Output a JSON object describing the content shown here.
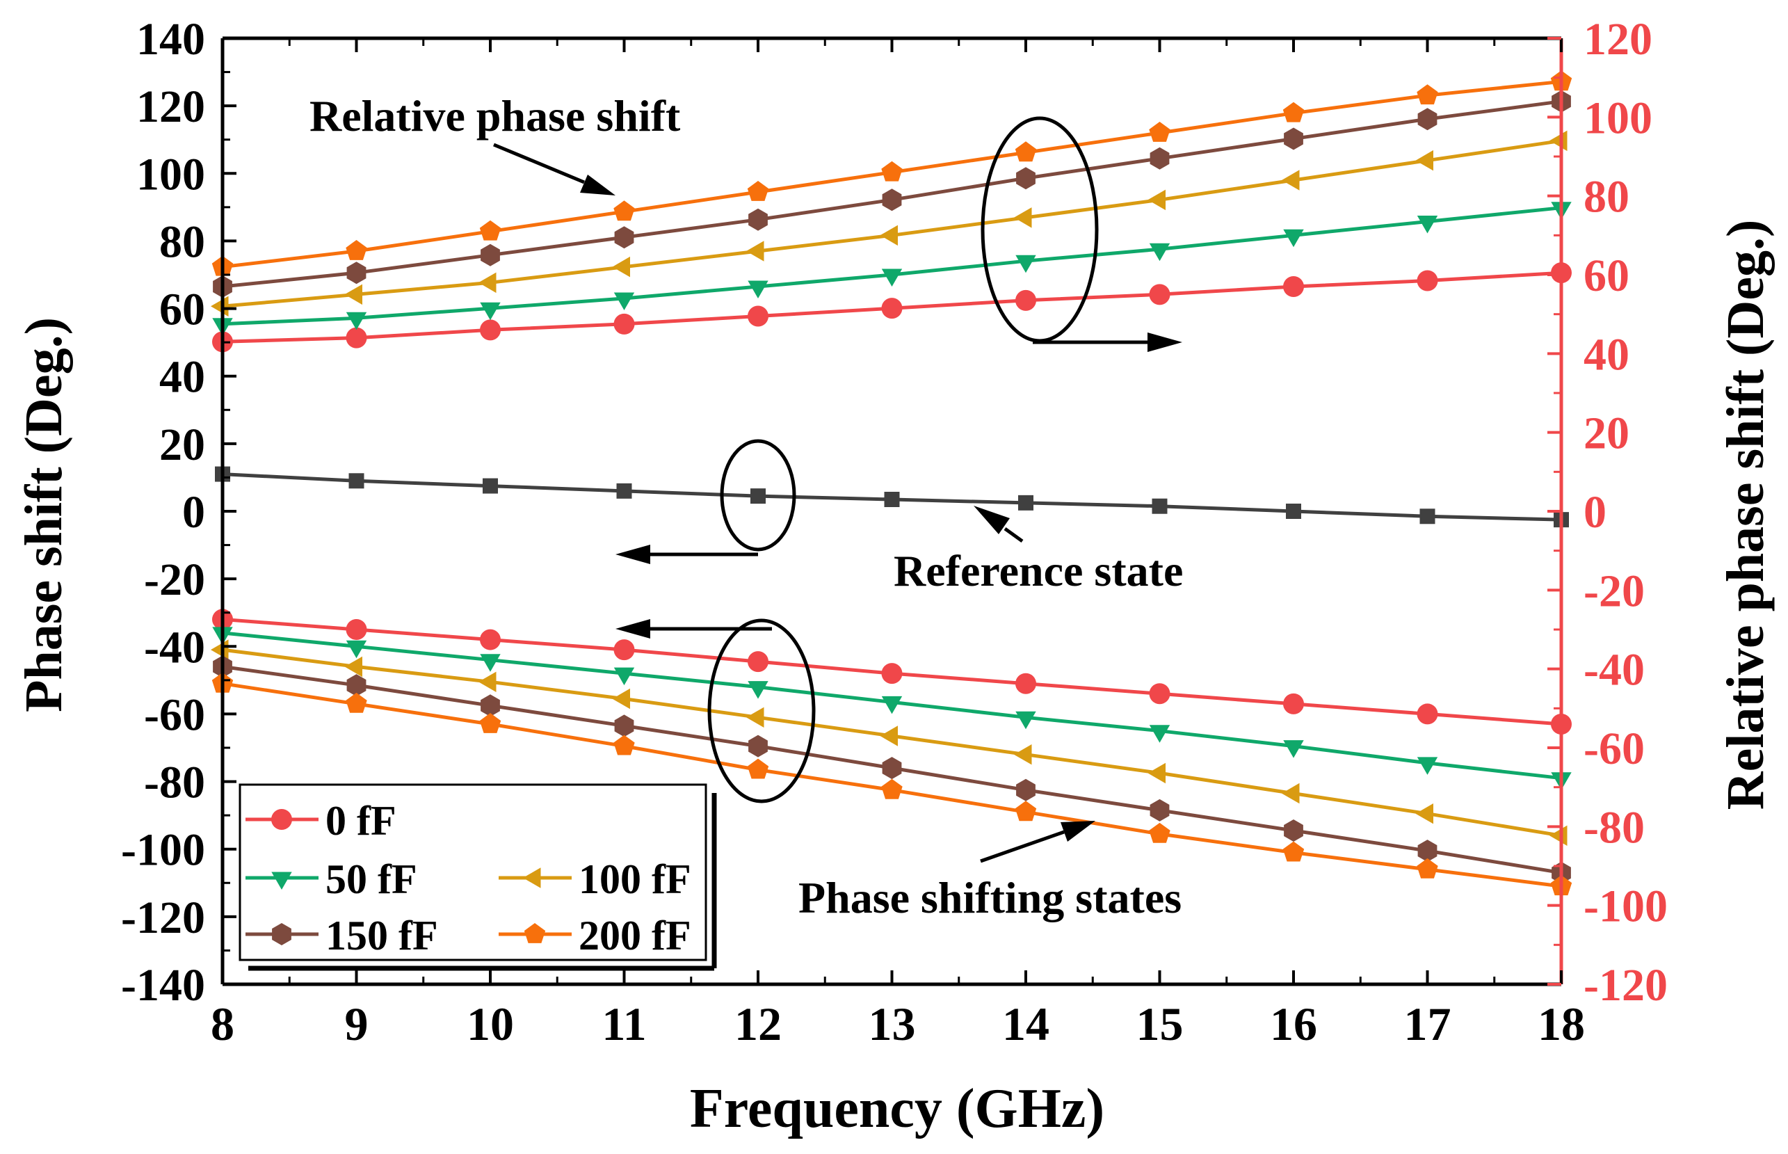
{
  "chart_data": {
    "type": "line",
    "xlabel": "Frequency (GHz)",
    "ylabel_left": "Phase shift (Deg.)",
    "ylabel_right": "Relative phase shift (Deg.)",
    "xlim": [
      8,
      18
    ],
    "ylim_left": [
      -140,
      140
    ],
    "ylim_right": [
      -120,
      120
    ],
    "x_ticks": [
      8,
      9,
      10,
      11,
      12,
      13,
      14,
      15,
      16,
      17,
      18
    ],
    "y_left_ticks": [
      140,
      120,
      100,
      80,
      60,
      40,
      20,
      0,
      -20,
      -40,
      -60,
      -80,
      -100,
      -120,
      -140
    ],
    "y_right_ticks": [
      120,
      100,
      80,
      60,
      40,
      20,
      0,
      -20,
      -40,
      -60,
      -80,
      -100,
      -120
    ],
    "x": [
      8,
      9,
      10,
      11,
      12,
      13,
      14,
      15,
      16,
      17,
      18
    ],
    "reference": {
      "axis": "left",
      "color": "#404040",
      "marker": "square",
      "values": [
        11,
        9,
        7.5,
        6,
        4.5,
        3.5,
        2.5,
        1.5,
        0,
        -1.5,
        -2.5
      ]
    },
    "phase_series": [
      {
        "name": "0 fF",
        "axis": "left",
        "color": "#f0474a",
        "marker": "circle",
        "values": [
          -32,
          -35,
          -38,
          -41,
          -44.5,
          -48,
          -51,
          -54,
          -57,
          -60,
          -63
        ]
      },
      {
        "name": "50 fF",
        "axis": "left",
        "color": "#0fa86a",
        "marker": "triangle-down",
        "values": [
          -36,
          -40,
          -44,
          -48,
          -52,
          -56.5,
          -61,
          -65,
          -69.5,
          -74.5,
          -79
        ]
      },
      {
        "name": "100 fF",
        "axis": "left",
        "color": "#d99b12",
        "marker": "triangle-left",
        "values": [
          -41,
          -46,
          -50.5,
          -55.5,
          -61,
          -66.5,
          -72,
          -77.5,
          -83.5,
          -89.5,
          -96
        ]
      },
      {
        "name": "150 fF",
        "axis": "left",
        "color": "#7d4a3e",
        "marker": "hexagon",
        "values": [
          -46,
          -51.5,
          -57.5,
          -63.5,
          -69.5,
          -76,
          -82.5,
          -88.5,
          -94.5,
          -100.5,
          -107
        ]
      },
      {
        "name": "200 fF",
        "axis": "left",
        "color": "#f7700c",
        "marker": "pentagon",
        "values": [
          -51,
          -57,
          -63,
          -69.5,
          -76.5,
          -82.5,
          -89,
          -95.5,
          -101,
          -106,
          -111
        ]
      }
    ],
    "relative_series": [
      {
        "name": "0 fF",
        "axis": "right",
        "color": "#f0474a",
        "marker": "circle",
        "values": [
          43,
          44,
          46,
          47.5,
          49.5,
          51.5,
          53.5,
          55,
          57,
          58.5,
          60.5
        ]
      },
      {
        "name": "50 fF",
        "axis": "right",
        "color": "#0fa86a",
        "marker": "triangle-down",
        "values": [
          47.5,
          49,
          51.5,
          54,
          57,
          60,
          63.5,
          66.5,
          70,
          73.5,
          77
        ]
      },
      {
        "name": "100 fF",
        "axis": "right",
        "color": "#d99b12",
        "marker": "triangle-left",
        "values": [
          52,
          55,
          58,
          62,
          66,
          70,
          74.5,
          79,
          84,
          89,
          94
        ]
      },
      {
        "name": "150 fF",
        "axis": "right",
        "color": "#7d4a3e",
        "marker": "hexagon",
        "values": [
          57,
          60.5,
          65,
          69.5,
          74,
          79,
          84.5,
          89.5,
          94.5,
          99.5,
          104
        ]
      },
      {
        "name": "200 fF",
        "axis": "right",
        "color": "#f7700c",
        "marker": "pentagon",
        "values": [
          62,
          66,
          71,
          76,
          81,
          86,
          91,
          96,
          101,
          105.5,
          109
        ]
      }
    ],
    "legend": {
      "placement": "bottom-left",
      "entries": [
        "0 fF",
        "50 fF",
        "100 fF",
        "150 fF",
        "200 fF"
      ]
    },
    "annotations": {
      "relative": "Relative phase shift",
      "reference": "Reference state",
      "shifting": "Phase shifting states"
    },
    "left_axis_color": "#000000",
    "right_axis_color": "#f0474a"
  }
}
